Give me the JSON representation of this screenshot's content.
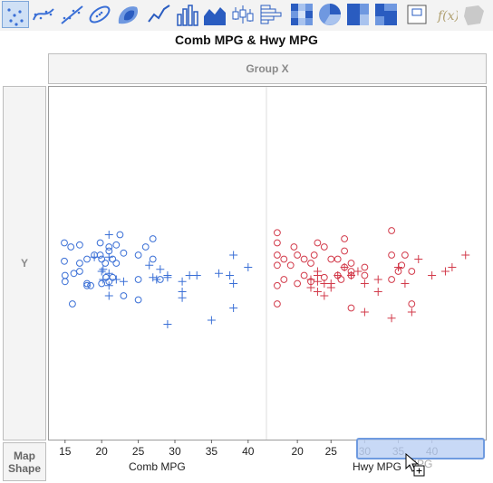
{
  "toolbar": {
    "buttons": [
      {
        "name": "points-element-icon",
        "active": true
      },
      {
        "name": "smoother-element-icon"
      },
      {
        "name": "line-of-fit-element-icon"
      },
      {
        "name": "ellipse-element-icon"
      },
      {
        "name": "contour-element-icon"
      },
      {
        "name": "line-element-icon"
      },
      {
        "name": "bar-element-icon"
      },
      {
        "name": "area-element-icon"
      },
      {
        "name": "box-plot-element-icon"
      },
      {
        "name": "histogram-element-icon"
      },
      {
        "name": "heatmap-element-icon"
      },
      {
        "name": "pie-element-icon"
      },
      {
        "name": "treemap-element-icon"
      },
      {
        "name": "mosaic-element-icon"
      },
      {
        "name": "caption-box-element-icon"
      },
      {
        "name": "formula-element-icon"
      },
      {
        "name": "map-shapes-element-icon"
      }
    ]
  },
  "graph": {
    "title": "Comb MPG & Hwy MPG",
    "group_x": "Group X",
    "y_zone": "Y",
    "map_shape": [
      "Map",
      "Shape"
    ],
    "ghost_label": "MPG"
  },
  "colors": {
    "blue": "#3a6fd6",
    "red": "#d23a4a",
    "chip": "#6f9be0"
  },
  "chart_data": [
    {
      "type": "scatter",
      "name": "Comb MPG",
      "xlabel": "Comb MPG",
      "xlim": [
        12.8,
        42.5
      ],
      "ticks": [
        15,
        20,
        25,
        30,
        35,
        40
      ],
      "circles": [
        [
          14.9,
          0.5
        ],
        [
          14.9,
          0.05
        ],
        [
          15,
          -0.3
        ],
        [
          15,
          -0.45
        ],
        [
          15.8,
          0.4
        ],
        [
          16,
          -1.0
        ],
        [
          16.2,
          -0.25
        ],
        [
          17,
          0.45
        ],
        [
          17,
          0.0
        ],
        [
          17,
          -0.2
        ],
        [
          18,
          -0.5
        ],
        [
          18,
          -0.55
        ],
        [
          18,
          0.1
        ],
        [
          18.5,
          -0.55
        ],
        [
          19,
          0.2
        ],
        [
          19.8,
          0.2
        ],
        [
          19.8,
          0.5
        ],
        [
          20,
          0.1
        ],
        [
          20,
          -0.5
        ],
        [
          20.6,
          -0.35
        ],
        [
          20.5,
          0.0
        ],
        [
          21,
          0.4
        ],
        [
          21,
          0.3
        ],
        [
          21,
          -0.45
        ],
        [
          21.5,
          0.1
        ],
        [
          21.5,
          -0.35
        ],
        [
          22,
          0.45
        ],
        [
          22,
          0.0
        ],
        [
          22.5,
          0.7
        ],
        [
          23,
          -0.8
        ],
        [
          23,
          0.25
        ],
        [
          25,
          -0.9
        ],
        [
          25,
          0.2
        ],
        [
          25,
          -0.4
        ],
        [
          26,
          0.4
        ],
        [
          27,
          0.1
        ],
        [
          27,
          0.6
        ],
        [
          28,
          -0.4
        ]
      ],
      "crosses": [
        [
          20.2,
          -0.4
        ],
        [
          20.2,
          -0.15
        ],
        [
          21,
          -0.25
        ],
        [
          21,
          -0.55
        ],
        [
          21,
          0.7
        ],
        [
          21,
          0.15
        ],
        [
          21,
          -0.8
        ],
        [
          20,
          -0.2
        ],
        [
          22,
          -0.4
        ],
        [
          23,
          -0.45
        ],
        [
          19,
          0.15
        ],
        [
          26.5,
          -0.05
        ],
        [
          27,
          -0.35
        ],
        [
          27.5,
          -0.4
        ],
        [
          28,
          -0.15
        ],
        [
          29,
          -0.35
        ],
        [
          29,
          -1.5
        ],
        [
          29,
          -0.3
        ],
        [
          31,
          -0.45
        ],
        [
          31,
          -0.7
        ],
        [
          31,
          -0.85
        ],
        [
          32,
          -0.3
        ],
        [
          33,
          -0.3
        ],
        [
          35,
          -1.4
        ],
        [
          36,
          -0.25
        ],
        [
          37.5,
          -0.3
        ],
        [
          38,
          0.2
        ],
        [
          38,
          -0.5
        ],
        [
          38,
          -1.1
        ],
        [
          40,
          -0.1
        ]
      ]
    },
    {
      "type": "scatter",
      "name": "Hwy MPG",
      "xlabel": "Hwy MPG",
      "xlim": [
        15.4,
        48
      ],
      "ticks": [
        20,
        25,
        30,
        35,
        40
      ],
      "circles": [
        [
          17,
          0.75
        ],
        [
          17,
          0.5
        ],
        [
          17,
          0.2
        ],
        [
          17,
          -0.05
        ],
        [
          17,
          -0.55
        ],
        [
          17,
          -1.0
        ],
        [
          18,
          0.1
        ],
        [
          18,
          -0.4
        ],
        [
          19,
          -0.05
        ],
        [
          19.5,
          0.4
        ],
        [
          20,
          0.2
        ],
        [
          20,
          -0.5
        ],
        [
          21,
          0.1
        ],
        [
          21,
          -0.3
        ],
        [
          22,
          -0.45
        ],
        [
          22,
          0.0
        ],
        [
          22.5,
          0.2
        ],
        [
          23,
          0.5
        ],
        [
          24,
          0.4
        ],
        [
          24,
          -0.35
        ],
        [
          25,
          0.1
        ],
        [
          26,
          0.1
        ],
        [
          26,
          -0.3
        ],
        [
          26.5,
          -0.4
        ],
        [
          27,
          0.3
        ],
        [
          27,
          0.6
        ],
        [
          27,
          -0.1
        ],
        [
          28,
          -0.3
        ],
        [
          28,
          -0.2
        ],
        [
          28,
          0.0
        ],
        [
          28,
          -1.1
        ],
        [
          30,
          -0.3
        ],
        [
          30,
          -0.1
        ],
        [
          34,
          -0.4
        ],
        [
          34,
          0.8
        ],
        [
          34,
          0.2
        ],
        [
          35,
          -0.2
        ],
        [
          35.5,
          -0.05
        ],
        [
          36,
          0.2
        ],
        [
          37,
          -1.0
        ],
        [
          37,
          -0.2
        ]
      ],
      "crosses": [
        [
          22,
          -0.6
        ],
        [
          22,
          -0.4
        ],
        [
          23,
          -0.2
        ],
        [
          23,
          -0.3
        ],
        [
          23,
          -0.45
        ],
        [
          23,
          -0.7
        ],
        [
          24,
          -0.5
        ],
        [
          24,
          -0.8
        ],
        [
          25,
          -0.5
        ],
        [
          25,
          -0.6
        ],
        [
          26,
          -0.3
        ],
        [
          27,
          -0.1
        ],
        [
          28,
          -0.3
        ],
        [
          29,
          -0.2
        ],
        [
          30,
          -1.2
        ],
        [
          30,
          -0.5
        ],
        [
          32,
          -0.7
        ],
        [
          32,
          -0.4
        ],
        [
          34,
          -1.35
        ],
        [
          35,
          -0.1
        ],
        [
          36,
          -0.5
        ],
        [
          37,
          -1.2
        ],
        [
          38,
          0.1
        ],
        [
          42,
          -0.2
        ],
        [
          45,
          0.2
        ],
        [
          40,
          -0.3
        ],
        [
          43,
          -0.1
        ]
      ]
    }
  ]
}
